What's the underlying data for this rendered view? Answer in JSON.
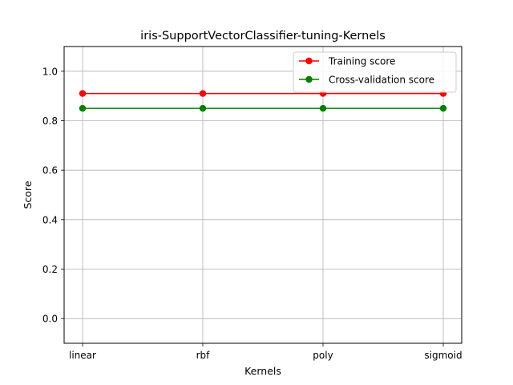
{
  "chart_data": {
    "type": "line",
    "title": "iris-SupportVectorClassifier-tuning-Kernels",
    "xlabel": "Kernels",
    "ylabel": "Score",
    "categories": [
      "linear",
      "rbf",
      "poly",
      "sigmoid"
    ],
    "ylim": [
      -0.1,
      1.1
    ],
    "yticks": [
      0.0,
      0.2,
      0.4,
      0.6,
      0.8,
      1.0
    ],
    "ytick_labels": [
      "0.0",
      "0.2",
      "0.4",
      "0.6",
      "0.8",
      "1.0"
    ],
    "grid": true,
    "legend_position": "top-right",
    "series": [
      {
        "name": "Training score",
        "color": "#ff0000",
        "marker": "circle",
        "values": [
          0.91,
          0.91,
          0.91,
          0.91
        ]
      },
      {
        "name": "Cross-validation score",
        "color": "#008000",
        "marker": "circle",
        "values": [
          0.85,
          0.85,
          0.85,
          0.85
        ]
      }
    ]
  }
}
